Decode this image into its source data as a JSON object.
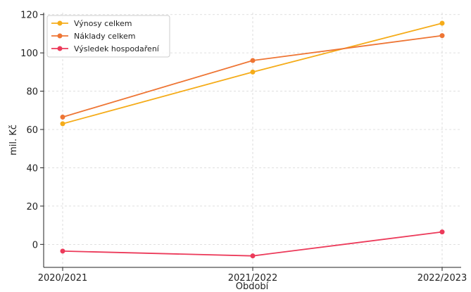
{
  "chart_data": {
    "type": "line",
    "title": "",
    "xlabel": "Období",
    "ylabel": "mil. Kč",
    "categories": [
      "2020/2021",
      "2021/2022",
      "2022/2023"
    ],
    "ylim": [
      -12,
      121
    ],
    "yticks": [
      0,
      20,
      40,
      60,
      80,
      100,
      120
    ],
    "grid": true,
    "legend_position": "top-left",
    "series": [
      {
        "name": "Výnosy celkem",
        "color": "#f5ac19",
        "values": [
          63,
          90,
          115.5
        ]
      },
      {
        "name": "Náklady celkem",
        "color": "#ee7534",
        "values": [
          66.5,
          96,
          109
        ]
      },
      {
        "name": "Výsledek hospodaření",
        "color": "#ec3a5a",
        "values": [
          -3.5,
          -6,
          6.5
        ]
      }
    ]
  }
}
